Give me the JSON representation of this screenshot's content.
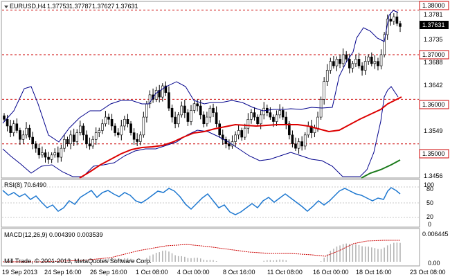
{
  "header": {
    "symbol": "EURUSD,H4",
    "open": "1.37753",
    "high": "1.37787",
    "low": "1.37627",
    "close": "1.37631"
  },
  "price_panel": {
    "axis_labels": [
      "1.3781",
      "1.3735",
      "1.3688",
      "1.3642",
      "1.3549",
      "1.3456"
    ],
    "levels": [
      {
        "value": 1.38,
        "label": "1.38000"
      },
      {
        "value": 1.37,
        "label": "1.37000"
      },
      {
        "value": 1.36,
        "label": "1.36000"
      },
      {
        "value": 1.35,
        "label": "1.35000"
      }
    ],
    "current_price": "1.37631"
  },
  "rsi_panel": {
    "title": "RSI(8) 70.6490",
    "axis_labels": [
      "100",
      "80",
      "50",
      "20",
      "0"
    ]
  },
  "macd_panel": {
    "title": "MACD(12,26,9) 0.004390 0.003539",
    "axis_labels": [
      "0.006445",
      "0.00"
    ],
    "copyright": "Mill Trade, © 2001-2013, MetaQuotes Software Corp."
  },
  "time_axis": [
    "19 Sep 2013",
    "24 Sep 16:00",
    "26 Sep 16:00",
    "1 Oct 08:00",
    "4 Oct 00:00",
    "8 Oct 16:00",
    "11 Oct 08:00",
    "16 Oct 00:00",
    "18 Oct 16:00",
    "23 Oct 08:00"
  ],
  "colors": {
    "bollinger": "#00008b",
    "ma_red": "#dd0000",
    "ma_green": "#1a7a1a",
    "level_line": "#cc0000",
    "level_label_border": "#cc0000",
    "rsi": "#1e78d0",
    "macd_hist": "#b0b0b0",
    "macd_signal": "#cc0000"
  },
  "chart_data": {
    "type": "candlestick",
    "price_range": [
      1.3425,
      1.3818
    ],
    "closes": [
      1.3555,
      1.354,
      1.3525,
      1.3545,
      1.353,
      1.351,
      1.352,
      1.3535,
      1.3515,
      1.35,
      1.349,
      1.3475,
      1.348,
      1.347,
      1.3465,
      1.3475,
      1.348,
      1.347,
      1.349,
      1.351,
      1.35,
      1.352,
      1.3505,
      1.3525,
      1.354,
      1.352,
      1.35,
      1.3495,
      1.351,
      1.3525,
      1.353,
      1.3545,
      1.356,
      1.3555,
      1.354,
      1.3525,
      1.352,
      1.354,
      1.3555,
      1.3545,
      1.3525,
      1.351,
      1.3505,
      1.352,
      1.356,
      1.359,
      1.361,
      1.36,
      1.362,
      1.3605,
      1.363,
      1.3615,
      1.358,
      1.356,
      1.3545,
      1.3565,
      1.3585,
      1.357,
      1.355,
      1.3575,
      1.359,
      1.3585,
      1.3565,
      1.3545,
      1.356,
      1.358,
      1.357,
      1.3545,
      1.352,
      1.351,
      1.35,
      1.3495,
      1.3505,
      1.352,
      1.353,
      1.3515,
      1.3535,
      1.3555,
      1.357,
      1.356,
      1.3545,
      1.3565,
      1.358,
      1.357,
      1.356,
      1.355,
      1.3565,
      1.3575,
      1.356,
      1.3545,
      1.352,
      1.35,
      1.349,
      1.3505,
      1.3495,
      1.352,
      1.354,
      1.3525,
      1.3535,
      1.356,
      1.36,
      1.364,
      1.3665,
      1.3685,
      1.3675,
      1.369,
      1.368,
      1.37,
      1.369,
      1.367,
      1.368,
      1.369,
      1.3675,
      1.3665,
      1.3685,
      1.3695,
      1.368,
      1.3685,
      1.3675,
      1.37,
      1.3745,
      1.378,
      1.3775,
      1.3785,
      1.377,
      1.3763
    ]
  }
}
